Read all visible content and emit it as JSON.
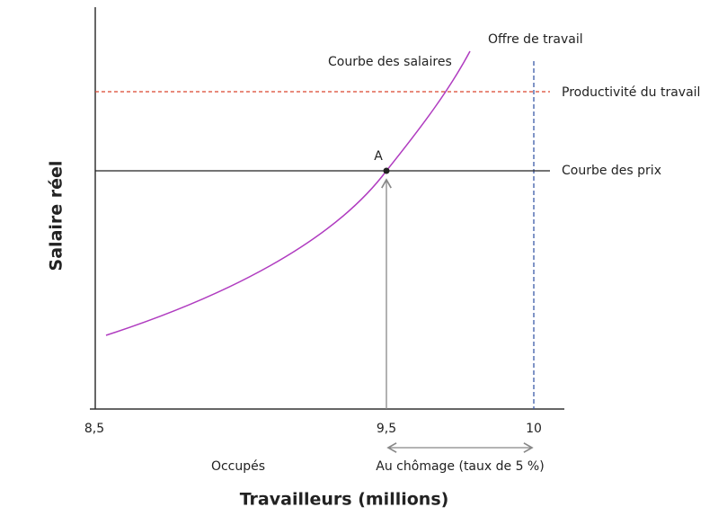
{
  "title_y": "Salaire réel",
  "title_x": "Travailleurs (millions)",
  "x_tick_labels": [
    "8,5",
    "9,5",
    "10"
  ],
  "curves": {
    "wage_setting": "Courbe des salaires",
    "labour_supply": "Offre de travail",
    "productivity": "Productivité du travail",
    "price_setting": "Courbe des prix"
  },
  "point": "A",
  "segments": {
    "employed": "Occupés",
    "unemployed": "Au chômage (taux de 5 %)"
  }
}
